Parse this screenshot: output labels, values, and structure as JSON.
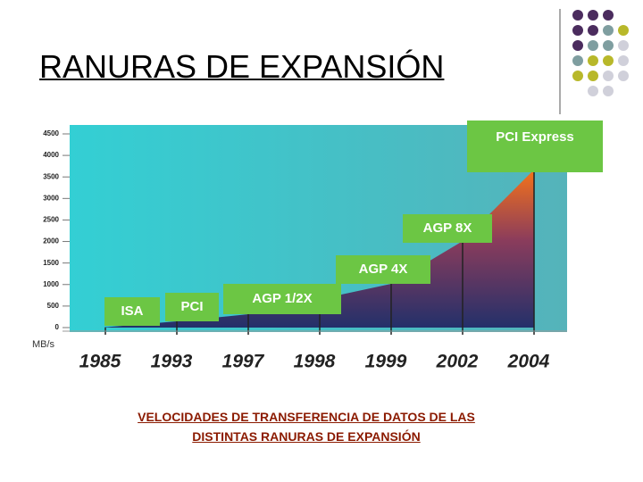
{
  "title": "RANURAS DE EXPANSIÓN",
  "chart_data": {
    "type": "area",
    "categories": [
      "1985",
      "1993",
      "1997",
      "1998",
      "1999",
      "2002",
      "2004"
    ],
    "values": [
      8,
      145,
      310,
      660,
      1015,
      2010,
      3670
    ],
    "ylim": [
      0,
      4500
    ],
    "yticks": [
      0,
      500,
      1000,
      1500,
      2000,
      2500,
      3000,
      3500,
      4000,
      4500
    ],
    "ylabel": "MB/s",
    "annotations": [
      "ISA",
      "PCI",
      "AGP 1/2X",
      "AGP 4X",
      "AGP 8X",
      "PCI Express"
    ]
  },
  "caption_lines": [
    "VELOCIDADES DE TRANSFERENCIA DE DATOS DE LAS",
    "DISTINTAS RANURAS DE EXPANSIÓN"
  ]
}
